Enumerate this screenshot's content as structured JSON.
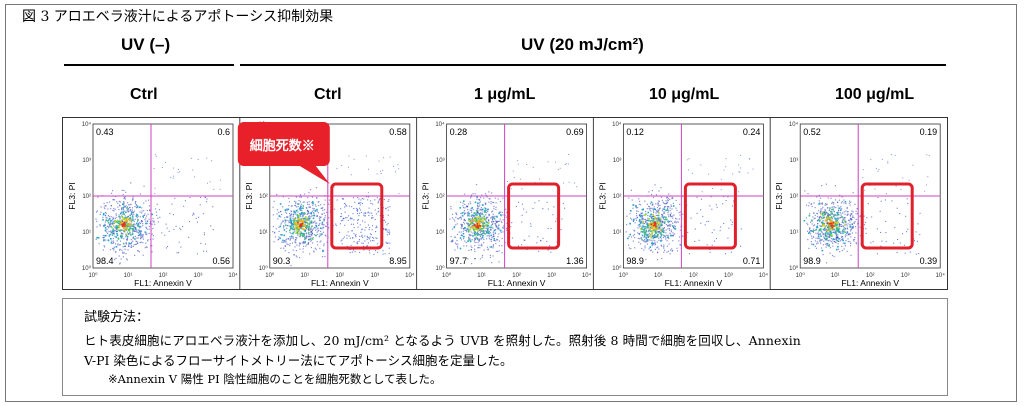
{
  "figure_title": "図 3  アロエベラ液汁によるアポトーシス抑制効果",
  "header": {
    "uv_minus": "UV (–)",
    "uv_plus": "UV (20 mJ/cm²)"
  },
  "columns": [
    "Ctrl",
    "Ctrl",
    "1 μg/mL",
    "10 μg/mL",
    "100 μg/mL"
  ],
  "callout": "細胞死数※",
  "axis": {
    "xlabel": "FL1: Annexin V",
    "ylabel": "FL3: PI",
    "ticks": [
      "10⁰",
      "10¹",
      "10²",
      "10³",
      "10⁴"
    ]
  },
  "colors": {
    "quadrant_line": "#d040c0",
    "highlight": "#e0202a",
    "callout_bg": "#e8202a"
  },
  "panels": [
    {
      "ul": "0.43",
      "ur": "0.6",
      "ll": "98.4",
      "lr": "0.56",
      "highlight": false
    },
    {
      "ul": "",
      "ur": "0.58",
      "ll": "90.3",
      "lr": "8.95",
      "highlight": true
    },
    {
      "ul": "0.28",
      "ur": "0.69",
      "ll": "97.7",
      "lr": "1.36",
      "highlight": true
    },
    {
      "ul": "0.12",
      "ur": "0.24",
      "ll": "98.9",
      "lr": "0.71",
      "highlight": true
    },
    {
      "ul": "0.52",
      "ur": "0.19",
      "ll": "98.9",
      "lr": "0.39",
      "highlight": true
    }
  ],
  "method": {
    "title": "試験方法：",
    "line1": "ヒト表皮細胞にアロエベラ液汁を添加し、20 mJ/cm² となるよう UVB を照射した。照射後 8 時間で細胞を回収し、Annexin",
    "line2": "V-PI 染色によるフローサイトメトリー法にてアポトーシス細胞を定量した。",
    "note": "※Annexin V 陽性 PI 陰性細胞のことを細胞死数として表した。"
  }
}
